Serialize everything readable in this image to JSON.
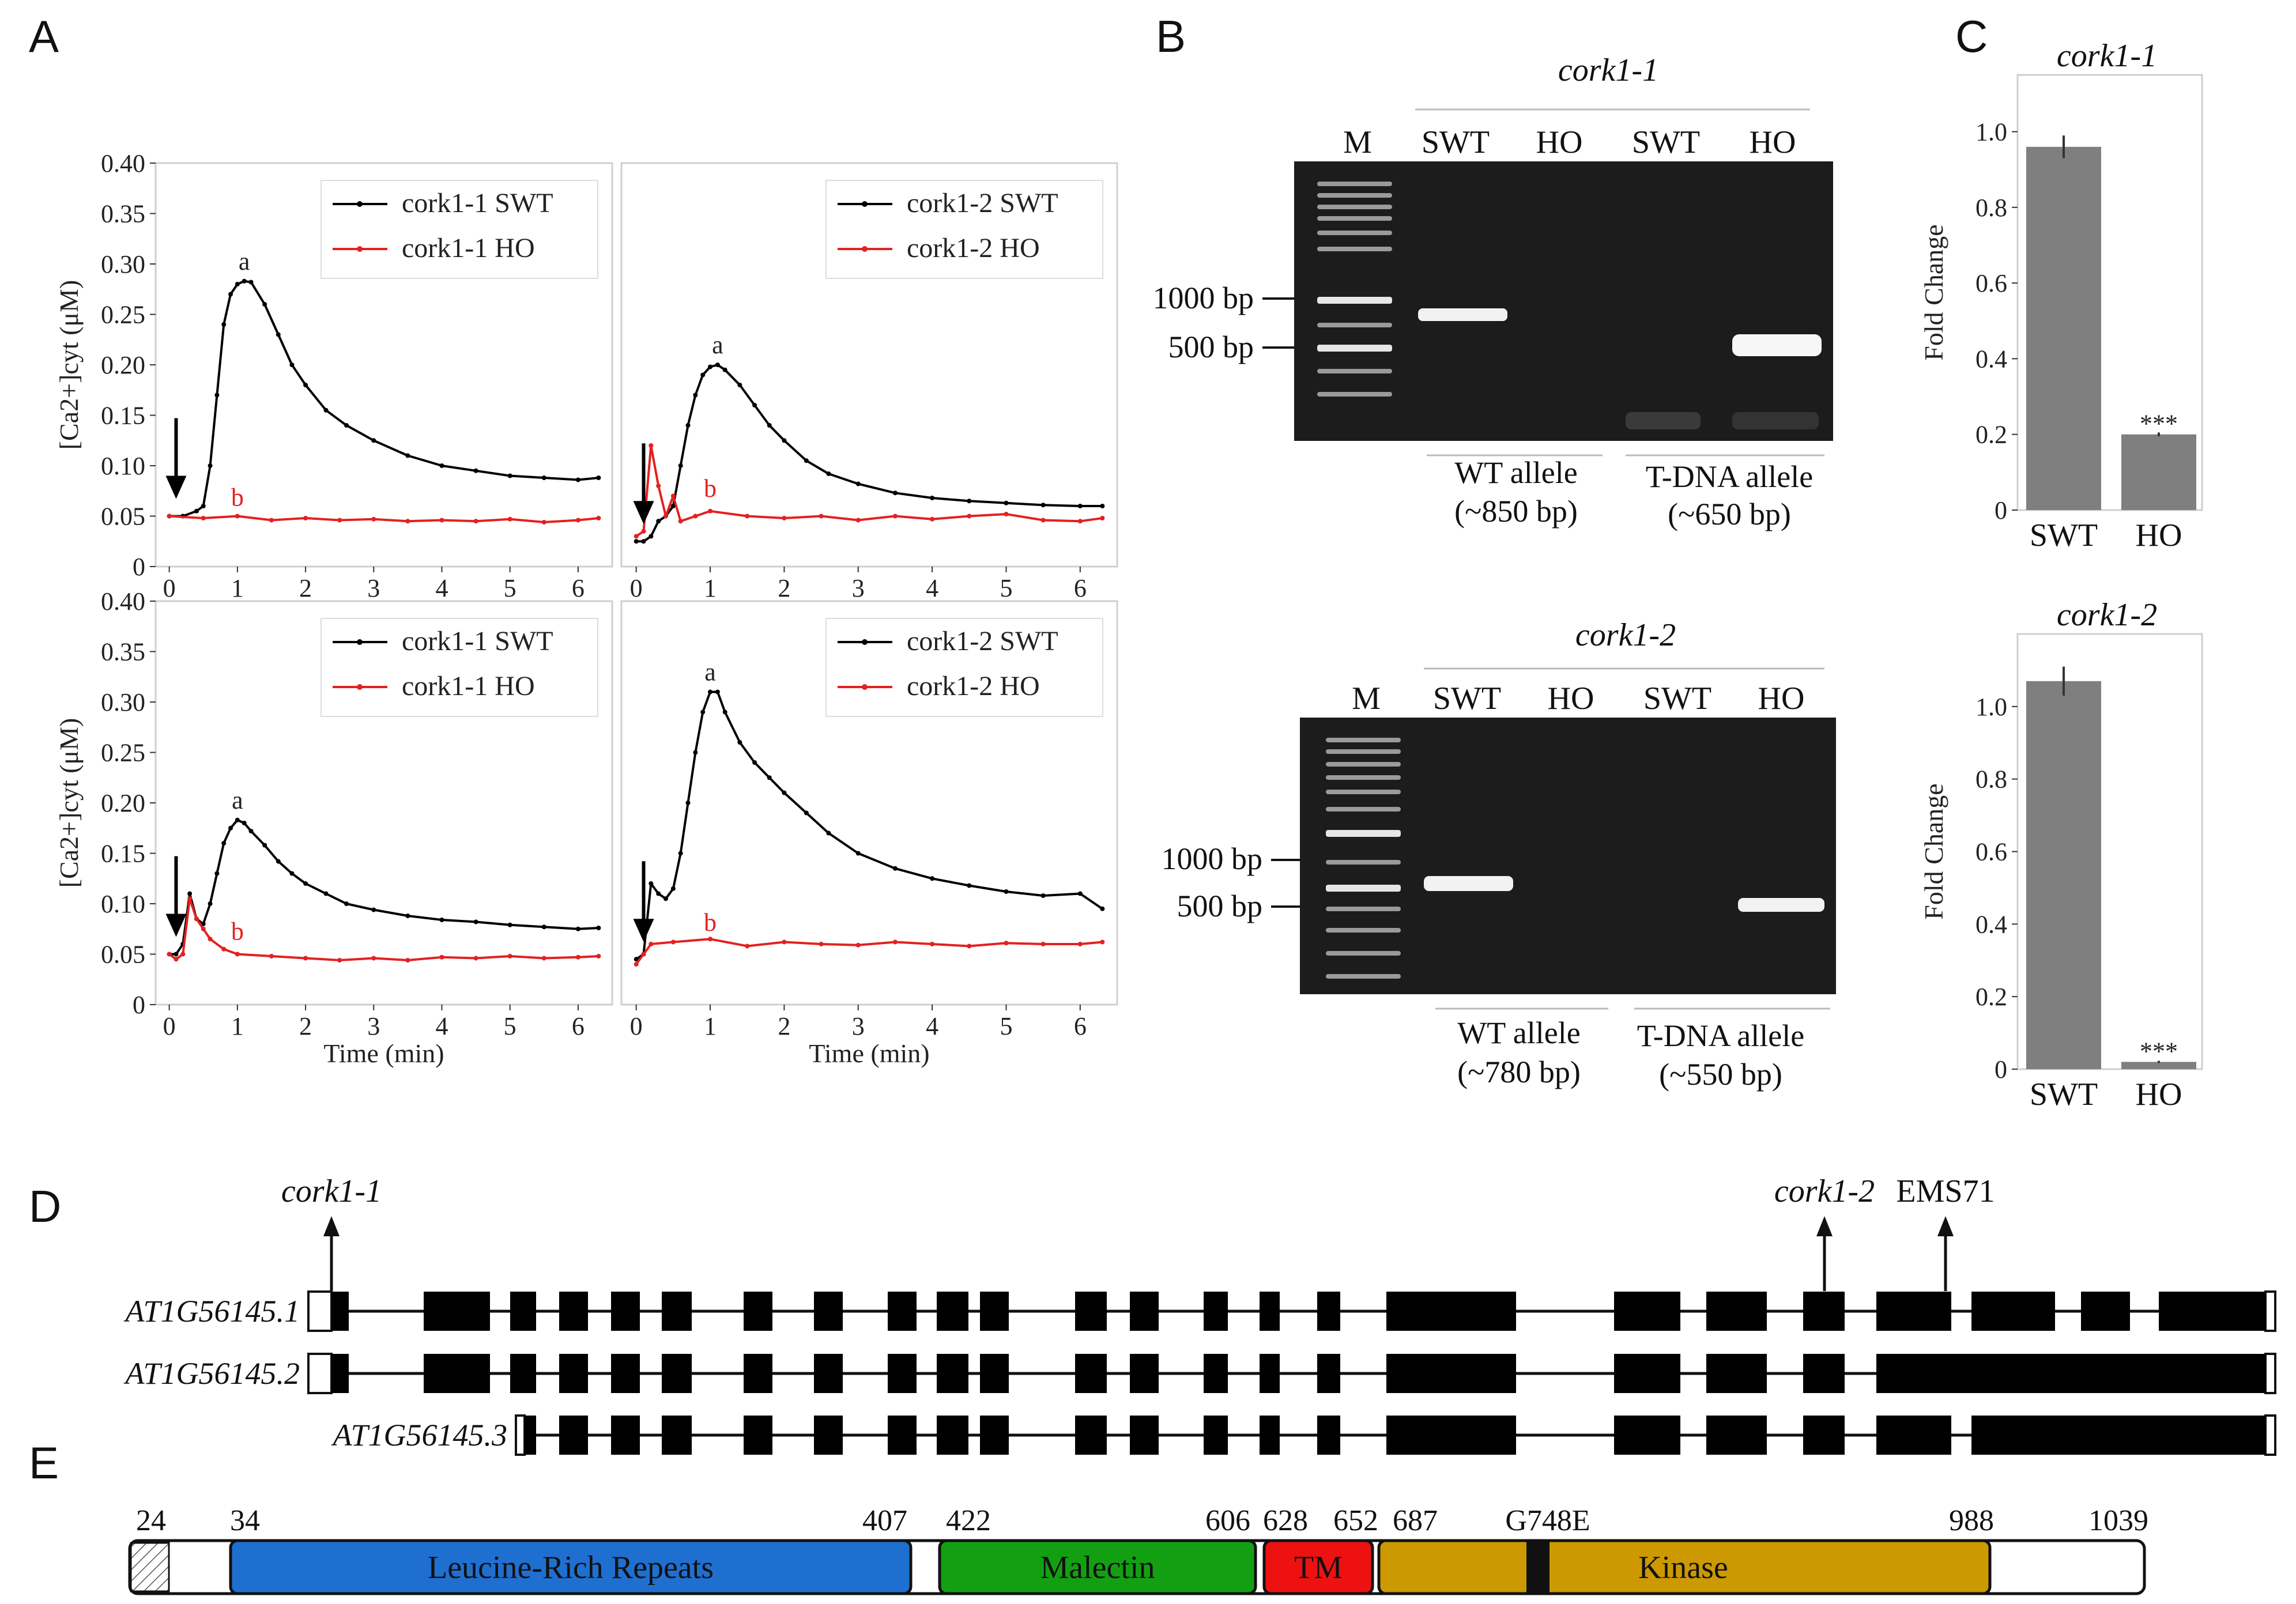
{
  "panels": {
    "a": "A",
    "b": "B",
    "c": "C",
    "d": "D",
    "e": "E"
  },
  "chart_data": [
    {
      "type": "line",
      "panel": "A",
      "position": "top-left",
      "ylabel": "[Ca2+]cyt (μM)",
      "xlabel": "",
      "xlim": [
        -0.2,
        6.5
      ],
      "ylim": [
        0,
        0.4
      ],
      "x_ticks": [
        "0",
        "1",
        "2",
        "3",
        "4",
        "5",
        "6"
      ],
      "y_ticks": [
        "0",
        "0.05",
        "0.10",
        "0.15",
        "0.20",
        "0.25",
        "0.30",
        "0.35",
        "0.40"
      ],
      "legend": [
        "cork1-1 SWT",
        "cork1-1 HO"
      ],
      "annotations": {
        "a": "a",
        "b": "b"
      },
      "stimulus_time": 0.1,
      "series": [
        {
          "name": "cork1-1 SWT",
          "color": "#000000",
          "x": [
            0,
            0.2,
            0.4,
            0.5,
            0.6,
            0.7,
            0.8,
            0.9,
            1.0,
            1.1,
            1.2,
            1.4,
            1.6,
            1.8,
            2.0,
            2.3,
            2.6,
            3.0,
            3.5,
            4.0,
            4.5,
            5.0,
            5.5,
            6.0,
            6.3
          ],
          "y": [
            0.05,
            0.05,
            0.055,
            0.06,
            0.1,
            0.17,
            0.24,
            0.27,
            0.28,
            0.283,
            0.282,
            0.26,
            0.23,
            0.2,
            0.18,
            0.155,
            0.14,
            0.125,
            0.11,
            0.1,
            0.095,
            0.09,
            0.088,
            0.086,
            0.088
          ]
        },
        {
          "name": "cork1-1 HO",
          "color": "#e32121",
          "x": [
            0,
            0.5,
            1,
            1.5,
            2,
            2.5,
            3,
            3.5,
            4,
            4.5,
            5,
            5.5,
            6,
            6.3
          ],
          "y": [
            0.05,
            0.048,
            0.05,
            0.046,
            0.048,
            0.046,
            0.047,
            0.045,
            0.046,
            0.045,
            0.047,
            0.044,
            0.046,
            0.048
          ]
        }
      ]
    },
    {
      "type": "line",
      "panel": "A",
      "position": "top-right",
      "xlabel": "",
      "xlim": [
        -0.2,
        6.5
      ],
      "ylim": [
        0,
        0.4
      ],
      "x_ticks": [
        "0",
        "1",
        "2",
        "3",
        "4",
        "5",
        "6"
      ],
      "legend": [
        "cork1-2 SWT",
        "cork1-2 HO"
      ],
      "annotations": {
        "a": "a",
        "b": "b"
      },
      "stimulus_time": 0.1,
      "series": [
        {
          "name": "cork1-2 SWT",
          "color": "#000000",
          "x": [
            0,
            0.1,
            0.2,
            0.3,
            0.4,
            0.5,
            0.6,
            0.7,
            0.8,
            0.9,
            1.0,
            1.1,
            1.2,
            1.4,
            1.6,
            1.8,
            2.0,
            2.3,
            2.6,
            3.0,
            3.5,
            4.0,
            4.5,
            5.0,
            5.5,
            6.0,
            6.3
          ],
          "y": [
            0.025,
            0.025,
            0.03,
            0.045,
            0.05,
            0.06,
            0.1,
            0.14,
            0.17,
            0.19,
            0.198,
            0.2,
            0.195,
            0.18,
            0.16,
            0.14,
            0.125,
            0.105,
            0.092,
            0.082,
            0.073,
            0.068,
            0.065,
            0.063,
            0.061,
            0.06,
            0.06
          ]
        },
        {
          "name": "cork1-2 HO",
          "color": "#e32121",
          "x": [
            0,
            0.1,
            0.2,
            0.3,
            0.4,
            0.5,
            0.6,
            0.8,
            1.0,
            1.5,
            2,
            2.5,
            3,
            3.5,
            4,
            4.5,
            5,
            5.5,
            6,
            6.3
          ],
          "y": [
            0.03,
            0.035,
            0.12,
            0.08,
            0.05,
            0.07,
            0.045,
            0.05,
            0.055,
            0.05,
            0.048,
            0.05,
            0.046,
            0.05,
            0.047,
            0.05,
            0.052,
            0.046,
            0.045,
            0.048
          ]
        }
      ]
    },
    {
      "type": "line",
      "panel": "A",
      "position": "bottom-left",
      "ylabel": "[Ca2+]cyt (μM)",
      "xlabel": "Time (min)",
      "xlim": [
        -0.2,
        6.5
      ],
      "ylim": [
        0,
        0.4
      ],
      "x_ticks": [
        "0",
        "1",
        "2",
        "3",
        "4",
        "5",
        "6"
      ],
      "y_ticks": [
        "0",
        "0.05",
        "0.10",
        "0.15",
        "0.20",
        "0.25",
        "0.30",
        "0.35",
        "0.40"
      ],
      "legend": [
        "cork1-1 SWT",
        "cork1-1 HO"
      ],
      "annotations": {
        "a": "a",
        "b": "b"
      },
      "stimulus_time": 0.1,
      "series": [
        {
          "name": "cork1-1 SWT",
          "color": "#000000",
          "x": [
            0,
            0.1,
            0.2,
            0.3,
            0.4,
            0.5,
            0.6,
            0.7,
            0.8,
            0.9,
            1.0,
            1.1,
            1.2,
            1.4,
            1.6,
            1.8,
            2.0,
            2.3,
            2.6,
            3.0,
            3.5,
            4.0,
            4.5,
            5.0,
            5.5,
            6.0,
            6.3
          ],
          "y": [
            0.05,
            0.05,
            0.06,
            0.11,
            0.085,
            0.08,
            0.1,
            0.13,
            0.16,
            0.175,
            0.183,
            0.18,
            0.172,
            0.158,
            0.142,
            0.13,
            0.12,
            0.11,
            0.1,
            0.094,
            0.088,
            0.084,
            0.082,
            0.079,
            0.077,
            0.075,
            0.076
          ]
        },
        {
          "name": "cork1-1 HO",
          "color": "#e32121",
          "x": [
            0,
            0.1,
            0.2,
            0.3,
            0.4,
            0.5,
            0.6,
            0.8,
            1.0,
            1.5,
            2,
            2.5,
            3,
            3.5,
            4,
            4.5,
            5,
            5.5,
            6,
            6.3
          ],
          "y": [
            0.05,
            0.045,
            0.05,
            0.105,
            0.085,
            0.075,
            0.065,
            0.055,
            0.05,
            0.048,
            0.046,
            0.044,
            0.046,
            0.044,
            0.047,
            0.046,
            0.048,
            0.046,
            0.047,
            0.048
          ]
        }
      ]
    },
    {
      "type": "line",
      "panel": "A",
      "position": "bottom-right",
      "xlabel": "Time (min)",
      "xlim": [
        -0.2,
        6.5
      ],
      "ylim": [
        0,
        0.4
      ],
      "x_ticks": [
        "0",
        "1",
        "2",
        "3",
        "4",
        "5",
        "6"
      ],
      "legend": [
        "cork1-2 SWT",
        "cork1-2 HO"
      ],
      "annotations": {
        "a": "a",
        "b": "b"
      },
      "stimulus_time": 0.1,
      "series": [
        {
          "name": "cork1-2 SWT",
          "color": "#000000",
          "x": [
            0,
            0.1,
            0.2,
            0.3,
            0.4,
            0.5,
            0.6,
            0.7,
            0.8,
            0.9,
            1.0,
            1.1,
            1.2,
            1.4,
            1.6,
            1.8,
            2.0,
            2.3,
            2.6,
            3.0,
            3.5,
            4.0,
            4.5,
            5.0,
            5.5,
            6.0,
            6.3
          ],
          "y": [
            0.045,
            0.05,
            0.12,
            0.11,
            0.105,
            0.115,
            0.15,
            0.2,
            0.25,
            0.29,
            0.31,
            0.31,
            0.29,
            0.26,
            0.24,
            0.225,
            0.21,
            0.19,
            0.17,
            0.15,
            0.135,
            0.125,
            0.118,
            0.112,
            0.108,
            0.11,
            0.095
          ]
        },
        {
          "name": "cork1-2 HO",
          "color": "#e32121",
          "x": [
            0,
            0.1,
            0.2,
            0.5,
            1,
            1.5,
            2,
            2.5,
            3,
            3.5,
            4,
            4.5,
            5,
            5.5,
            6,
            6.3
          ],
          "y": [
            0.04,
            0.05,
            0.06,
            0.062,
            0.065,
            0.058,
            0.062,
            0.06,
            0.059,
            0.062,
            0.06,
            0.058,
            0.061,
            0.06,
            0.06,
            0.062
          ]
        }
      ]
    },
    {
      "type": "bar",
      "panel": "C",
      "title": "cork1-1",
      "categories": [
        "SWT",
        "HO"
      ],
      "values": [
        0.96,
        0.2
      ],
      "errors": [
        0.03,
        0.005
      ],
      "significance": [
        "",
        "***"
      ],
      "ylabel": "Fold Change",
      "ylim": [
        0,
        1.15
      ],
      "y_ticks": [
        "0",
        "0.2",
        "0.4",
        "0.6",
        "0.8",
        "1.0"
      ]
    },
    {
      "type": "bar",
      "panel": "C",
      "title": "cork1-2",
      "categories": [
        "SWT",
        "HO"
      ],
      "values": [
        1.07,
        0.02
      ],
      "errors": [
        0.04,
        0.003
      ],
      "significance": [
        "",
        "***"
      ],
      "ylabel": "Fold Change",
      "ylim": [
        0,
        1.2
      ],
      "y_ticks": [
        "0",
        "0.2",
        "0.4",
        "0.6",
        "0.8",
        "1.0"
      ]
    }
  ],
  "gels": [
    {
      "title": "cork1-1",
      "lanes": [
        "M",
        "SWT",
        "HO",
        "SWT",
        "HO"
      ],
      "markers": [
        "1000 bp",
        "500 bp"
      ],
      "alleles": [
        {
          "line1": "WT allele",
          "line2": "(~850 bp)"
        },
        {
          "line1": "T-DNA allele",
          "line2": "(~650 bp)"
        }
      ]
    },
    {
      "title": "cork1-2",
      "lanes": [
        "M",
        "SWT",
        "HO",
        "SWT",
        "HO"
      ],
      "markers": [
        "1000 bp",
        "500 bp"
      ],
      "alleles": [
        {
          "line1": "WT allele",
          "line2": "(~780 bp)"
        },
        {
          "line1": "T-DNA allele",
          "line2": "(~550 bp)"
        }
      ]
    }
  ],
  "gene_models": {
    "transcripts": [
      "AT1G56145.1",
      "AT1G56145.2",
      "AT1G56145.3"
    ],
    "mutations": [
      "cork1-1",
      "cork1-2",
      "EMS71"
    ]
  },
  "protein": {
    "positions": [
      "24",
      "34",
      "407",
      "422",
      "606",
      "628",
      "652",
      "687",
      "G748E",
      "988",
      "1039"
    ],
    "domains": [
      {
        "name": "Leucine-Rich Repeats",
        "color": "#1f6fd0"
      },
      {
        "name": "Malectin",
        "color": "#12a012"
      },
      {
        "name": "TM",
        "color": "#ee1111"
      },
      {
        "name": "Kinase",
        "color": "#cc9900"
      }
    ]
  }
}
